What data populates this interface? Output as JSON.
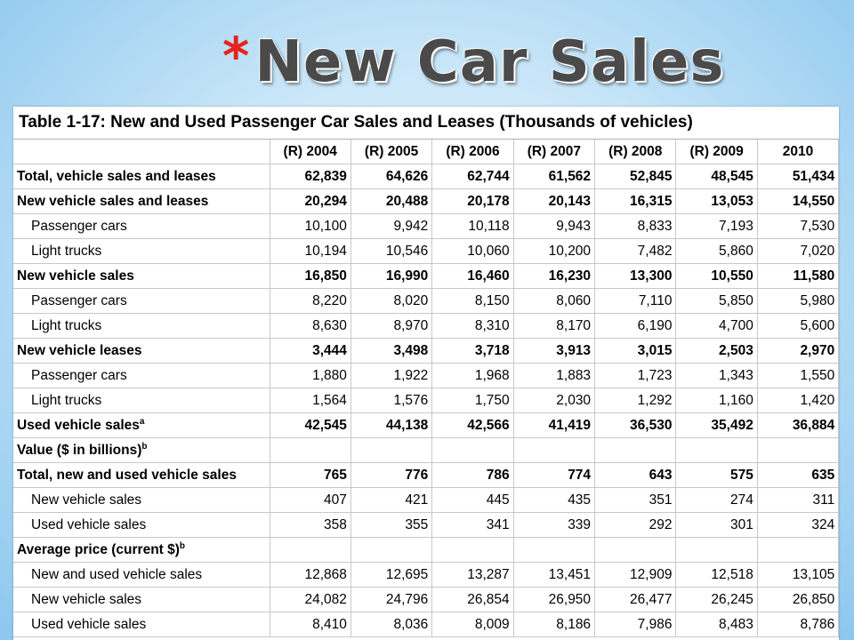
{
  "slide": {
    "bullet": "*",
    "title": "New Car Sales"
  },
  "table": {
    "caption": "Table 1-17:  New and Used Passenger Car Sales and Leases (Thousands of vehicles)",
    "headers": [
      "(R) 2004",
      "(R) 2005",
      "(R) 2006",
      "(R) 2007",
      "(R) 2008",
      "(R) 2009",
      "2010"
    ],
    "rows": [
      {
        "label": "Total, vehicle sales and leases",
        "sup": "",
        "bold": true,
        "indent": false,
        "values": [
          "62,839",
          "64,626",
          "62,744",
          "61,562",
          "52,845",
          "48,545",
          "51,434"
        ]
      },
      {
        "label": "New vehicle sales and leases",
        "sup": "",
        "bold": true,
        "indent": false,
        "values": [
          "20,294",
          "20,488",
          "20,178",
          "20,143",
          "16,315",
          "13,053",
          "14,550"
        ]
      },
      {
        "label": "Passenger cars",
        "sup": "",
        "bold": false,
        "indent": true,
        "values": [
          "10,100",
          "9,942",
          "10,118",
          "9,943",
          "8,833",
          "7,193",
          "7,530"
        ]
      },
      {
        "label": "Light trucks",
        "sup": "",
        "bold": false,
        "indent": true,
        "values": [
          "10,194",
          "10,546",
          "10,060",
          "10,200",
          "7,482",
          "5,860",
          "7,020"
        ]
      },
      {
        "label": "New vehicle sales",
        "sup": "",
        "bold": true,
        "indent": false,
        "values": [
          "16,850",
          "16,990",
          "16,460",
          "16,230",
          "13,300",
          "10,550",
          "11,580"
        ]
      },
      {
        "label": "Passenger cars",
        "sup": "",
        "bold": false,
        "indent": true,
        "values": [
          "8,220",
          "8,020",
          "8,150",
          "8,060",
          "7,110",
          "5,850",
          "5,980"
        ]
      },
      {
        "label": "Light trucks",
        "sup": "",
        "bold": false,
        "indent": true,
        "values": [
          "8,630",
          "8,970",
          "8,310",
          "8,170",
          "6,190",
          "4,700",
          "5,600"
        ]
      },
      {
        "label": "New vehicle leases",
        "sup": "",
        "bold": true,
        "indent": false,
        "values": [
          "3,444",
          "3,498",
          "3,718",
          "3,913",
          "3,015",
          "2,503",
          "2,970"
        ]
      },
      {
        "label": "Passenger cars",
        "sup": "",
        "bold": false,
        "indent": true,
        "values": [
          "1,880",
          "1,922",
          "1,968",
          "1,883",
          "1,723",
          "1,343",
          "1,550"
        ]
      },
      {
        "label": "Light trucks",
        "sup": "",
        "bold": false,
        "indent": true,
        "values": [
          "1,564",
          "1,576",
          "1,750",
          "2,030",
          "1,292",
          "1,160",
          "1,420"
        ]
      },
      {
        "label": "Used vehicle sales",
        "sup": "a",
        "bold": true,
        "indent": false,
        "values": [
          "42,545",
          "44,138",
          "42,566",
          "41,419",
          "36,530",
          "35,492",
          "36,884"
        ]
      },
      {
        "label": "Value ($ in billions)",
        "sup": "b",
        "bold": true,
        "indent": false,
        "values": [
          "",
          "",
          "",
          "",
          "",
          "",
          ""
        ]
      },
      {
        "label": "Total, new and used vehicle sales",
        "sup": "",
        "bold": true,
        "indent": false,
        "values": [
          "765",
          "776",
          "786",
          "774",
          "643",
          "575",
          "635"
        ]
      },
      {
        "label": "New vehicle sales",
        "sup": "",
        "bold": false,
        "indent": true,
        "values": [
          "407",
          "421",
          "445",
          "435",
          "351",
          "274",
          "311"
        ]
      },
      {
        "label": "Used vehicle sales",
        "sup": "",
        "bold": false,
        "indent": true,
        "values": [
          "358",
          "355",
          "341",
          "339",
          "292",
          "301",
          "324"
        ]
      },
      {
        "label": "Average price (current $)",
        "sup": "b",
        "bold": true,
        "indent": false,
        "values": [
          "",
          "",
          "",
          "",
          "",
          "",
          ""
        ]
      },
      {
        "label": "New and used vehicle sales",
        "sup": "",
        "bold": false,
        "indent": true,
        "values": [
          "12,868",
          "12,695",
          "13,287",
          "13,451",
          "12,909",
          "12,518",
          "13,105"
        ]
      },
      {
        "label": "New vehicle sales",
        "sup": "",
        "bold": false,
        "indent": true,
        "values": [
          "24,082",
          "24,796",
          "26,854",
          "26,950",
          "26,477",
          "26,245",
          "26,850"
        ]
      },
      {
        "label": "Used vehicle sales",
        "sup": "",
        "bold": false,
        "indent": true,
        "values": [
          "8,410",
          "8,036",
          "8,009",
          "8,186",
          "7,986",
          "8,483",
          "8,786"
        ]
      }
    ]
  },
  "colors": {
    "bullet": "#e8231c",
    "title": "#4a4a4a",
    "background": "#c9e6f8"
  }
}
